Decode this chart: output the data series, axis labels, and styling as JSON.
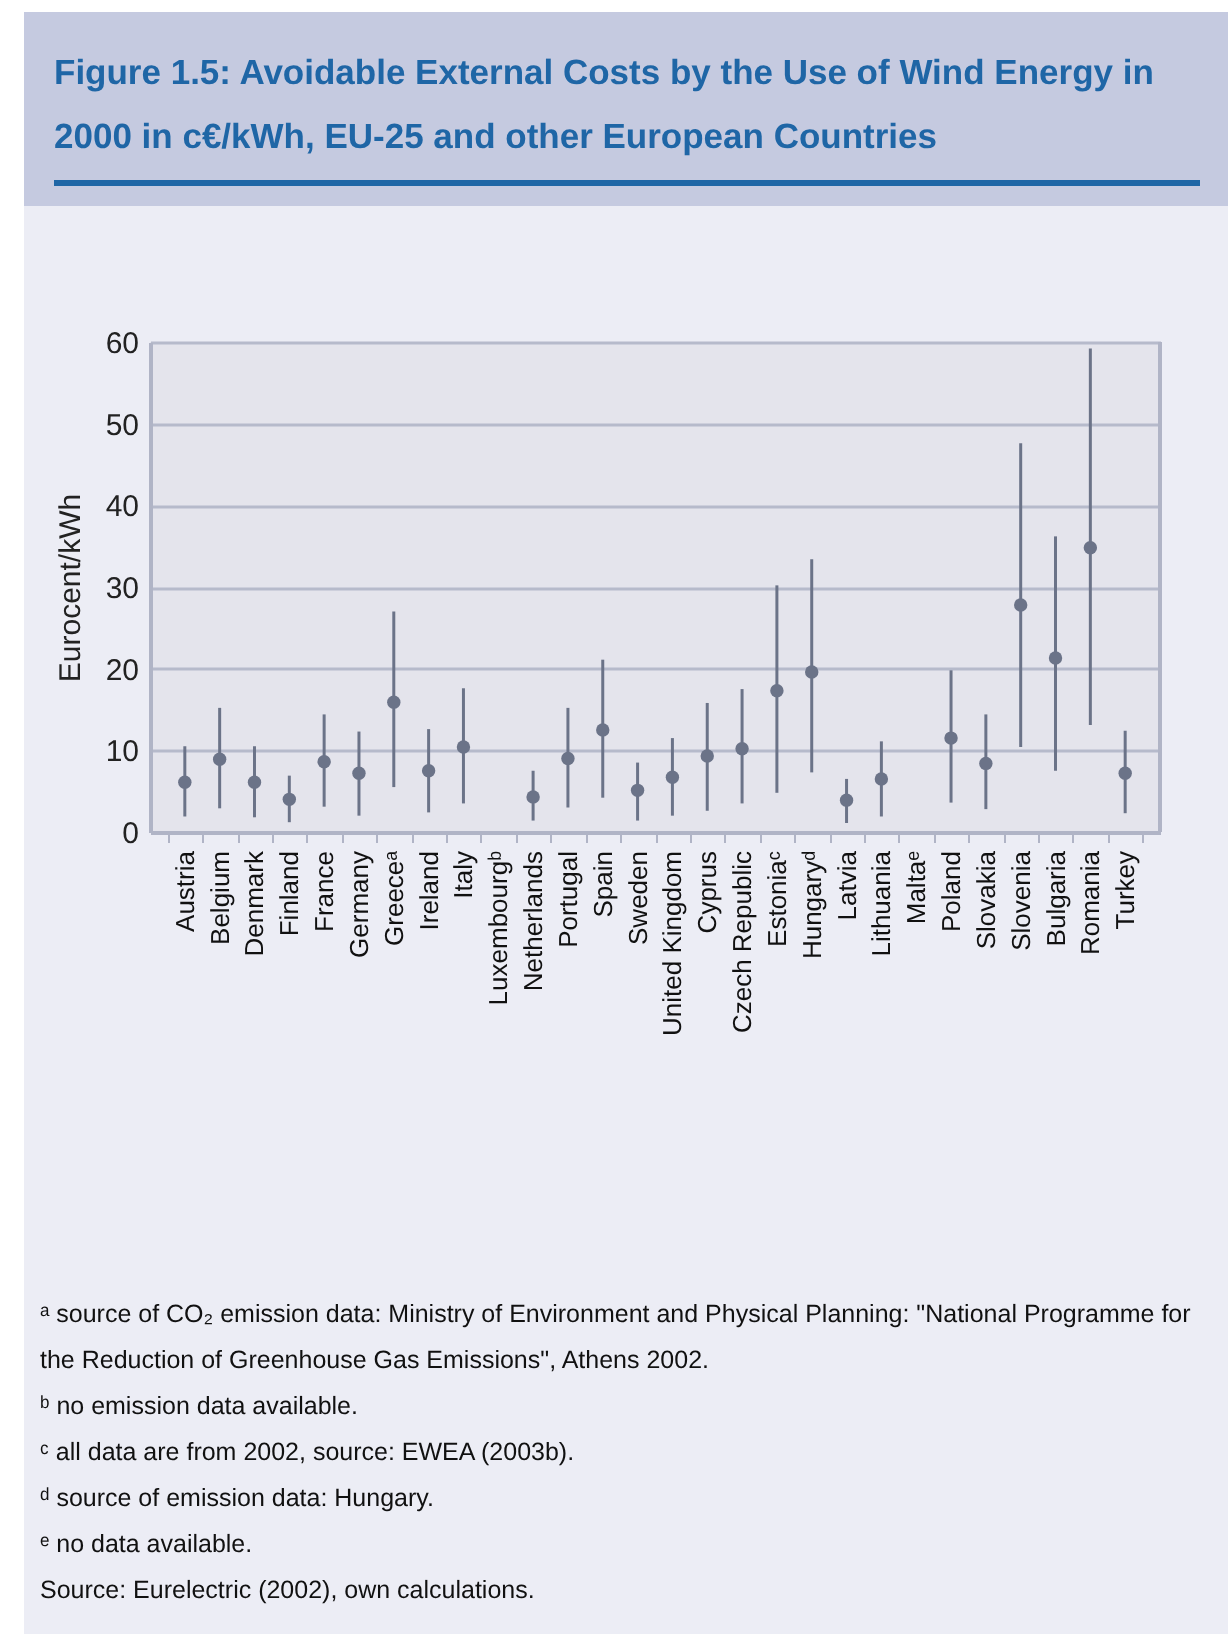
{
  "chart_data": {
    "type": "scatter",
    "title": "Figure 1.5: Avoidable External Costs by the Use of Wind Energy in 2000 in c€/kWh, EU-25 and other European Countries",
    "ylabel": "Eurocent/kWh",
    "categories": [
      "Austria",
      "Belgium",
      "Denmark",
      "Finland",
      "France",
      "Germany",
      "Greeceᵃ",
      "Ireland",
      "Italy",
      "Luxembourgᵇ",
      "Netherlands",
      "Portugal",
      "Spain",
      "Sweden",
      "United Kingdom",
      "Cyprus",
      "Czech Republic",
      "Estoniaᶜ",
      "Hungaryᵈ",
      "Latvia",
      "Lithuania",
      "Maltaᵉ",
      "Poland",
      "Slovakia",
      "Slovenia",
      "Bulgaria",
      "Romania",
      "Turkey"
    ],
    "values": [
      6.1,
      8.9,
      6.1,
      4.0,
      8.6,
      7.2,
      15.9,
      7.5,
      10.4,
      null,
      4.3,
      9.0,
      12.5,
      5.1,
      6.7,
      9.3,
      10.2,
      17.3,
      19.6,
      3.9,
      6.5,
      null,
      11.5,
      8.4,
      27.8,
      21.3,
      34.8,
      7.2
    ],
    "errors": [
      [
        1.9,
        10.5
      ],
      [
        2.9,
        15.2
      ],
      [
        1.8,
        10.5
      ],
      [
        1.2,
        6.9
      ],
      [
        3.1,
        14.4
      ],
      [
        2.0,
        12.3
      ],
      [
        5.5,
        27.0
      ],
      [
        2.4,
        12.6
      ],
      [
        3.5,
        17.6
      ],
      null,
      [
        1.4,
        7.5
      ],
      [
        3.0,
        15.2
      ],
      [
        4.2,
        21.1
      ],
      [
        1.4,
        8.5
      ],
      [
        2.0,
        11.5
      ],
      [
        2.6,
        15.8
      ],
      [
        3.5,
        17.5
      ],
      [
        4.8,
        30.2
      ],
      [
        7.3,
        33.4
      ],
      [
        1.1,
        6.5
      ],
      [
        1.9,
        11.1
      ],
      null,
      [
        3.6,
        19.8
      ],
      [
        2.8,
        14.4
      ],
      [
        10.4,
        47.6
      ],
      [
        7.5,
        36.2
      ],
      [
        13.1,
        59.2
      ],
      [
        2.3,
        12.4
      ]
    ],
    "color": "#6b7388",
    "ylim": [
      0,
      60
    ],
    "yticks": [
      0,
      10,
      20,
      30,
      40,
      50,
      60
    ],
    "grid": "y",
    "marker": "circle",
    "annotations": [
      "ᵃ source of CO₂ emission data: Ministry of Environment and Physical Planning: \"National Programme for the Reduction of Greenhouse Gas Emissions\", Athens 2002.",
      "ᵇ no emission data available.",
      "ᶜ all data are from 2002, source: EWEA (2003b).",
      "ᵈ source of emission data: Hungary.",
      "ᵉ no data available.",
      "Source: Eurelectric (2002), own calculations."
    ]
  }
}
